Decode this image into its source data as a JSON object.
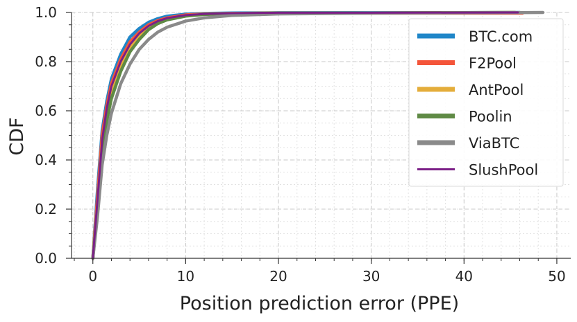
{
  "chart_data": {
    "type": "line",
    "xlabel": "Position prediction error (PPE)",
    "ylabel": "CDF",
    "xlim": [
      -2.3,
      51.5
    ],
    "ylim": [
      0.0,
      1.0
    ],
    "x_ticks": [
      0,
      10,
      20,
      30,
      40,
      50
    ],
    "y_ticks": [
      0.0,
      0.2,
      0.4,
      0.6,
      0.8,
      1.0
    ],
    "x_tick_labels": [
      "0",
      "10",
      "20",
      "30",
      "40",
      "50"
    ],
    "y_tick_labels": [
      "0.0",
      "0.2",
      "0.4",
      "0.6",
      "0.8",
      "1.0"
    ],
    "grid": true,
    "legend_position": "top-right",
    "series": [
      {
        "name": "BTC.com",
        "color": "#1f86c8",
        "x": [
          0,
          0.5,
          1,
          1.5,
          2,
          3,
          4,
          5,
          6,
          7,
          8,
          10,
          12,
          15,
          20,
          30,
          46
        ],
        "y": [
          0.0,
          0.28,
          0.52,
          0.64,
          0.73,
          0.83,
          0.9,
          0.935,
          0.96,
          0.975,
          0.985,
          0.993,
          0.996,
          0.998,
          0.999,
          0.999,
          1.0
        ]
      },
      {
        "name": "F2Pool",
        "color": "#f4553a",
        "x": [
          0,
          0.5,
          1,
          1.5,
          2,
          3,
          4,
          5,
          6,
          7,
          8,
          10,
          12,
          15,
          20,
          30,
          46.3
        ],
        "y": [
          0.0,
          0.25,
          0.5,
          0.62,
          0.71,
          0.81,
          0.88,
          0.92,
          0.95,
          0.967,
          0.978,
          0.99,
          0.994,
          0.996,
          0.997,
          0.997,
          0.997
        ]
      },
      {
        "name": "AntPool",
        "color": "#e4ad3a",
        "x": [
          0,
          0.5,
          1,
          1.5,
          2,
          3,
          4,
          5,
          6,
          7,
          8,
          10,
          12,
          15,
          20,
          30,
          45.5
        ],
        "y": [
          0.0,
          0.22,
          0.46,
          0.58,
          0.67,
          0.78,
          0.86,
          0.905,
          0.94,
          0.96,
          0.973,
          0.987,
          0.993,
          0.996,
          0.998,
          0.998,
          1.0
        ]
      },
      {
        "name": "Poolin",
        "color": "#5f8a45",
        "x": [
          0,
          0.5,
          1,
          1.5,
          2,
          3,
          4,
          5,
          6,
          7,
          8,
          10,
          12,
          15,
          20,
          30,
          45.5
        ],
        "y": [
          0.0,
          0.2,
          0.44,
          0.56,
          0.65,
          0.76,
          0.84,
          0.89,
          0.93,
          0.955,
          0.97,
          0.985,
          0.992,
          0.995,
          0.997,
          0.998,
          1.0
        ]
      },
      {
        "name": "ViaBTC",
        "color": "#8a8a8a",
        "x": [
          0,
          0.5,
          1,
          1.5,
          2,
          3,
          4,
          5,
          6,
          7,
          8,
          10,
          12,
          15,
          20,
          30,
          48.5
        ],
        "y": [
          0.0,
          0.17,
          0.38,
          0.5,
          0.59,
          0.71,
          0.79,
          0.85,
          0.89,
          0.92,
          0.94,
          0.965,
          0.978,
          0.988,
          0.994,
          0.997,
          1.0
        ]
      },
      {
        "name": "SlushPool",
        "color": "#7b1f86",
        "x": [
          0,
          0.5,
          1,
          1.5,
          2,
          3,
          4,
          5,
          6,
          7,
          8,
          10,
          12,
          15,
          20,
          30,
          45.8
        ],
        "y": [
          0.0,
          0.24,
          0.48,
          0.61,
          0.7,
          0.8,
          0.87,
          0.915,
          0.945,
          0.965,
          0.977,
          0.989,
          0.994,
          0.997,
          0.999,
          0.999,
          1.0
        ]
      }
    ]
  }
}
